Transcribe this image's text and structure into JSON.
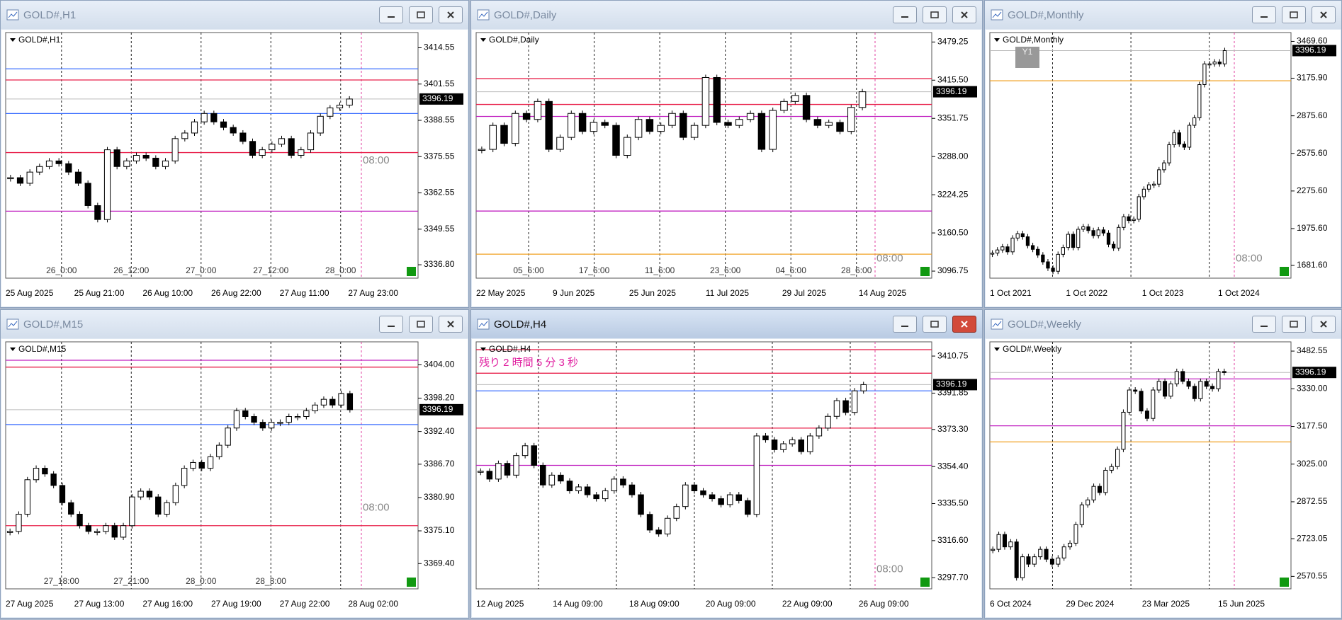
{
  "windows": [
    {
      "title": "GOLD#,H1",
      "label": "GOLD#,H1",
      "active": false,
      "ylim": [
        3332,
        3420
      ],
      "yticks": [
        3414.55,
        3401.55,
        3388.55,
        3375.55,
        3362.55,
        3349.55,
        {
          "value": 3336.8,
          "label": "3336.80"
        }
      ],
      "price": 3396.19,
      "closes": [
        3368,
        3366,
        3370,
        3372,
        3374,
        3373,
        3370,
        3366,
        3358,
        3353,
        3378,
        3372,
        3374,
        3376,
        3375,
        3372,
        3374,
        3382,
        3384,
        3388,
        3391,
        3388,
        3386,
        3384,
        3381,
        3376,
        3378,
        3380,
        3382,
        3376,
        3378,
        3384,
        3390,
        3393,
        3394,
        3396.19
      ],
      "levels": [
        {
          "price": 3407,
          "color": "#3b6fff"
        },
        {
          "price": 3403,
          "color": "#e8204a"
        },
        {
          "price": 3391,
          "color": "#3b6fff"
        },
        {
          "price": 3377,
          "color": "#e8204a"
        },
        {
          "price": 3356,
          "color": "#c020c0"
        }
      ],
      "separators": [
        "26_0:00",
        "26_12:00",
        "27_0:00",
        "27_12:00",
        "28_0:00"
      ],
      "dates": [
        "25 Aug 2025",
        "25 Aug 21:00",
        "26 Aug 10:00",
        "26 Aug 22:00",
        "27 Aug 11:00",
        "27 Aug 23:00"
      ],
      "time_note": "08:00"
    },
    {
      "title": "GOLD#,Daily",
      "label": "GOLD#,Daily",
      "active": false,
      "ylim": [
        3085,
        3495
      ],
      "yticks": [
        3479.25,
        {
          "value": 3415.5,
          "label": "3415.50"
        },
        3351.75,
        {
          "value": 3288,
          "label": "3288.00"
        },
        3224.25,
        {
          "value": 3160.5,
          "label": "3160.50"
        },
        3096.75
      ],
      "price": 3396.19,
      "closes": [
        3300,
        3340,
        3310,
        3360,
        3350,
        3380,
        3300,
        3320,
        3360,
        3330,
        3345,
        3340,
        3290,
        3320,
        3350,
        3330,
        3340,
        3360,
        3320,
        3340,
        3420,
        3345,
        3340,
        3350,
        3360,
        3300,
        3365,
        3380,
        3390,
        3350,
        3340,
        3345,
        3330,
        3370,
        3396.19
      ],
      "levels": [
        {
          "price": 3418,
          "color": "#e8204a"
        },
        {
          "price": 3375,
          "color": "#e8204a"
        },
        {
          "price": 3355,
          "color": "#c020c0"
        },
        {
          "price": 3197,
          "color": "#c020c0"
        },
        {
          "price": 3125,
          "color": "#f0a020"
        }
      ],
      "separators": [
        "05_6:00",
        "17_6:00",
        "11_6:00",
        "23_6:00",
        "04_6:00",
        "28_6:00"
      ],
      "dates": [
        "22 May 2025",
        "9 Jun 2025",
        "25 Jun 2025",
        "11 Jul 2025",
        "29 Jul 2025",
        "14 Aug 2025"
      ],
      "time_note": "08:00"
    },
    {
      "title": "GOLD#,Monthly",
      "label": "GOLD#,Monthly",
      "active": false,
      "ylim": [
        1580,
        3540
      ],
      "button": "Y1",
      "yticks": [
        {
          "value": 3469.6,
          "label": "3469.60"
        },
        {
          "value": 3175.9,
          "label": "3175.90"
        },
        {
          "value": 2875.6,
          "label": "2875.60"
        },
        {
          "value": 2575.6,
          "label": "2575.60"
        },
        {
          "value": 2275.6,
          "label": "2275.60"
        },
        {
          "value": 1975.6,
          "label": "1975.60"
        },
        {
          "value": 1681.6,
          "label": "1681.60"
        }
      ],
      "price": 3396.19,
      "closes": [
        1780,
        1805,
        1830,
        1790,
        1900,
        1935,
        1910,
        1840,
        1810,
        1765,
        1710,
        1660,
        1635,
        1770,
        1825,
        1930,
        1825,
        1970,
        1990,
        1960,
        1920,
        1965,
        1940,
        1850,
        1820,
        1985,
        2070,
        2040,
        2050,
        2230,
        2290,
        2325,
        2330,
        2445,
        2500,
        2645,
        2740,
        2650,
        2625,
        2800,
        2860,
        3125,
        3290,
        3290,
        3305,
        3290,
        3396.19
      ],
      "levels": [
        {
          "price": 3155,
          "color": "#f0a020"
        }
      ],
      "separators": [],
      "dates": [
        "1 Oct 2021",
        "1 Oct 2022",
        "1 Oct 2023",
        "1 Oct 2024"
      ],
      "time_note": "08:00"
    },
    {
      "title": "GOLD#,M15",
      "label": "GOLD#,M15",
      "active": false,
      "ylim": [
        3365,
        3408
      ],
      "yticks": [
        {
          "value": 3404,
          "label": "3404.00"
        },
        {
          "value": 3398.2,
          "label": "3398.20"
        },
        {
          "value": 3392.4,
          "label": "3392.40"
        },
        {
          "value": 3386.7,
          "label": "3386.70"
        },
        {
          "value": 3380.9,
          "label": "3380.90"
        },
        {
          "value": 3375.1,
          "label": "3375.10"
        },
        {
          "value": 3369.4,
          "label": "3369.40"
        }
      ],
      "price": 3396.19,
      "closes": [
        3375,
        3378,
        3384,
        3386,
        3385,
        3383,
        3380,
        3378,
        3376,
        3375,
        3375,
        3376,
        3374,
        3376,
        3381,
        3382,
        3381,
        3378,
        3380,
        3383,
        3386,
        3387,
        3386,
        3388,
        3390,
        3393,
        3396,
        3395,
        3394,
        3393,
        3394,
        3394,
        3395,
        3395,
        3396,
        3397,
        3398,
        3397,
        3399,
        3396.19
      ],
      "levels": [
        {
          "price": 3404.8,
          "color": "#c020c0"
        },
        {
          "price": 3403.6,
          "color": "#e8204a"
        },
        {
          "price": 3393.6,
          "color": "#3b6fff"
        },
        {
          "price": 3376,
          "color": "#e8204a"
        }
      ],
      "separators": [
        "27_18:00",
        "27_21:00",
        "28_0:00",
        "28_3:00"
      ],
      "dates": [
        "27 Aug 2025",
        "27 Aug 13:00",
        "27 Aug 16:00",
        "27 Aug 19:00",
        "27 Aug 22:00",
        "28 Aug 02:00"
      ],
      "time_note": "08:00"
    },
    {
      "title": "GOLD#,H4",
      "label": "GOLD#,H4",
      "active": true,
      "ylim": [
        3292,
        3418
      ],
      "notice": "残り 2 時間 5 分 3 秒",
      "yticks": [
        3410.75,
        3391.85,
        {
          "value": 3373.3,
          "label": "3373.30"
        },
        {
          "value": 3354.4,
          "label": "3354.40"
        },
        {
          "value": 3335.5,
          "label": "3335.50"
        },
        {
          "value": 3316.6,
          "label": "3316.60"
        },
        {
          "value": 3297.7,
          "label": "3297.70"
        }
      ],
      "price": 3396.19,
      "closes": [
        3352,
        3348,
        3356,
        3350,
        3360,
        3365,
        3355,
        3345,
        3350,
        3347,
        3342,
        3344,
        3340,
        3338,
        3342,
        3348,
        3345,
        3340,
        3330,
        3322,
        3320,
        3328,
        3334,
        3345,
        3342,
        3340,
        3338,
        3335,
        3340,
        3337,
        3330,
        3370,
        3368,
        3363,
        3366,
        3368,
        3362,
        3370,
        3374,
        3380,
        3388,
        3382,
        3393,
        3396.19
      ],
      "levels": [
        {
          "price": 3414,
          "color": "#e8204a"
        },
        {
          "price": 3402,
          "color": "#e8204a"
        },
        {
          "price": 3393,
          "color": "#3b6fff"
        },
        {
          "price": 3374,
          "color": "#e8204a"
        },
        {
          "price": 3355,
          "color": "#c020c0"
        }
      ],
      "separators": [],
      "dates": [
        "12 Aug 2025",
        "14 Aug 09:00",
        "18 Aug 09:00",
        "20 Aug 09:00",
        "22 Aug 09:00",
        "26 Aug 09:00"
      ],
      "time_note": "08:00"
    },
    {
      "title": "GOLD#,Weekly",
      "label": "GOLD#,Weekly",
      "active": false,
      "ylim": [
        2520,
        3520
      ],
      "yticks": [
        3482.55,
        {
          "value": 3330,
          "label": "3330.00"
        },
        {
          "value": 3177.5,
          "label": "3177.50"
        },
        {
          "value": 3025,
          "label": "3025.00"
        },
        2872.55,
        2723.05,
        2570.55
      ],
      "price": 3396.19,
      "closes": [
        2680,
        2740,
        2690,
        2710,
        2565,
        2650,
        2620,
        2650,
        2680,
        2640,
        2620,
        2645,
        2690,
        2705,
        2780,
        2860,
        2880,
        2935,
        2910,
        3000,
        3015,
        3085,
        3235,
        3325,
        3320,
        3240,
        3210,
        3325,
        3360,
        3300,
        3350,
        3400,
        3360,
        3340,
        3290,
        3360,
        3340,
        3330,
        3400,
        3396.19
      ],
      "levels": [
        {
          "price": 3370,
          "color": "#c020c0"
        },
        {
          "price": 3180,
          "color": "#c020c0"
        },
        {
          "price": 3115,
          "color": "#f0a020"
        }
      ],
      "separators": [],
      "dates": [
        "6 Oct 2024",
        "29 Dec 2024",
        "23 Mar 2025",
        "15 Jun 2025"
      ]
    }
  ]
}
